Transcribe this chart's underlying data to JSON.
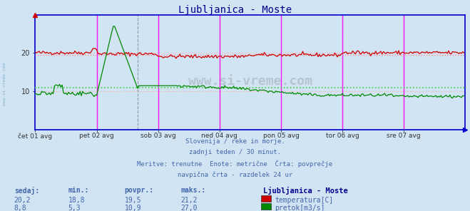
{
  "title": "Ljubljanica - Moste",
  "title_color": "#00008B",
  "bg_color": "#d0e4f4",
  "plot_bg_color": "#d0e4f4",
  "x_ticks_labels": [
    "čet 01 avg",
    "pet 02 avg",
    "sob 03 avg",
    "ned 04 avg",
    "pon 05 avg",
    "tor 06 avg",
    "sre 07 avg"
  ],
  "y_ticks": [
    10,
    20
  ],
  "ylim": [
    0,
    30
  ],
  "xlim": [
    0,
    336
  ],
  "n_points": 336,
  "temp_avg": 19.5,
  "flow_avg": 10.9,
  "temp_color": "#cc0000",
  "flow_color": "#008800",
  "temp_avg_color": "#ff8888",
  "flow_avg_color": "#44cc44",
  "grid_h_color": "#ffaaaa",
  "grid_v_color": "#ffaaaa",
  "vline_color": "#ff00ff",
  "vline_dashed_color": "#666666",
  "axis_color": "#0000cc",
  "text_color": "#4466aa",
  "footer_text_1": "Slovenija / reke in morje.",
  "footer_text_2": "zadnji teden / 30 minut.",
  "footer_text_3": "Meritve: trenutne  Enote: metrične  Črta: povprečje",
  "footer_text_4": "navpična črta - razdelek 24 ur",
  "legend_title": "Ljubljanica - Moste",
  "label_temp": "temperatura[C]",
  "label_flow": "pretok[m3/s]",
  "stats_headers": [
    "sedaj:",
    "min.:",
    "povpr.:",
    "maks.:"
  ],
  "stats_temp": [
    "20,2",
    "18,8",
    "19,5",
    "21,2"
  ],
  "stats_flow": [
    "8,8",
    "5,3",
    "10,9",
    "27,0"
  ],
  "watermark": "www.si-vreme.com",
  "side_watermark": "www.si-vreme.com"
}
